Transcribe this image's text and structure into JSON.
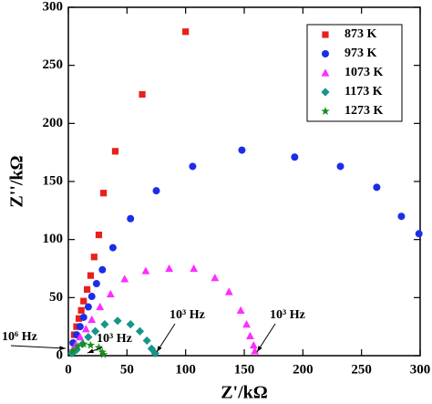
{
  "chart_data": {
    "type": "scatter",
    "x_label": "Z'/kΩ",
    "y_label": "Z''/kΩ",
    "xlim": [
      0,
      300
    ],
    "ylim": [
      0,
      300
    ],
    "xticks": [
      0,
      50,
      100,
      150,
      200,
      250,
      300
    ],
    "yticks": [
      0,
      50,
      100,
      150,
      200,
      250,
      300
    ],
    "legend": "upper right",
    "annotations": [
      "10⁶ Hz",
      "10³ Hz",
      "10³ Hz",
      "10³ Hz"
    ],
    "series": [
      {
        "name": "873 K",
        "color": "#e8201c",
        "marker": "square",
        "x": [
          100,
          63,
          40,
          30,
          26,
          22,
          19,
          16,
          13,
          11,
          9,
          7,
          5
        ],
        "y": [
          279,
          225,
          176,
          140,
          104,
          85,
          69,
          57,
          47,
          39,
          32,
          25,
          18
        ]
      },
      {
        "name": "973 K",
        "color": "#1c2de8",
        "marker": "circle",
        "x": [
          299,
          284,
          263,
          232,
          193,
          148,
          106,
          75,
          53,
          38,
          29,
          24,
          20,
          17,
          13,
          10,
          7,
          4
        ],
        "y": [
          105,
          120,
          145,
          163,
          171,
          177,
          163,
          142,
          118,
          93,
          74,
          62,
          51,
          42,
          33,
          25,
          18,
          11
        ]
      },
      {
        "name": "1073 K",
        "color": "#ff2bff",
        "marker": "triangle",
        "x": [
          3,
          6,
          10,
          15,
          20,
          27,
          36,
          48,
          66,
          86,
          107,
          125,
          137,
          147,
          152,
          155,
          158,
          159
        ],
        "y": [
          4,
          9,
          16,
          23,
          31,
          42,
          53,
          66,
          73,
          75,
          75,
          67,
          55,
          39,
          27,
          17,
          9,
          4
        ]
      },
      {
        "name": "1173 K",
        "color": "#16958a",
        "marker": "diamond",
        "x": [
          3,
          7,
          12,
          17,
          23,
          31,
          42,
          53,
          61,
          67,
          71,
          74
        ],
        "y": [
          2,
          5,
          10,
          16,
          21,
          27,
          30,
          27,
          21,
          13,
          6,
          2
        ]
      },
      {
        "name": "1273 K",
        "color": "#1a8c1a",
        "marker": "star",
        "x": [
          4,
          8,
          13,
          19,
          26,
          29,
          30
        ],
        "y": [
          4,
          8,
          10,
          9,
          7,
          3,
          1
        ]
      }
    ]
  }
}
